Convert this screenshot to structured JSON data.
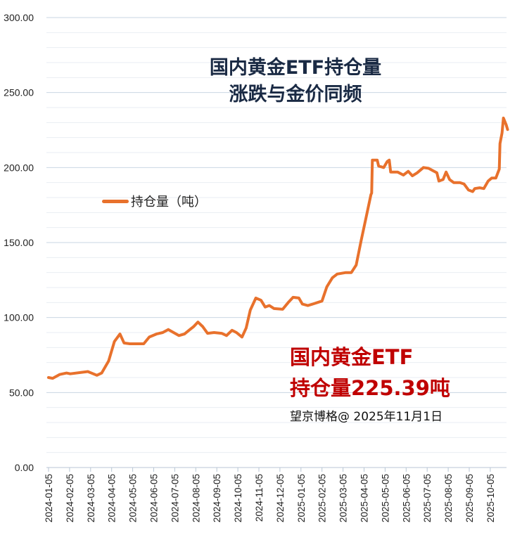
{
  "chart_data": {
    "type": "line",
    "title": "国内黄金ETF持仓量",
    "subtitle": "涨跌与金价同频",
    "xlabel": "",
    "ylabel": "",
    "ylim": [
      0,
      300
    ],
    "yticks": [
      "0.00",
      "50.00",
      "100.00",
      "150.00",
      "200.00",
      "250.00",
      "300.00"
    ],
    "xticks": [
      "2024-01-05",
      "2024-02-05",
      "2024-03-05",
      "2024-04-05",
      "2024-05-05",
      "2024-06-05",
      "2024-07-05",
      "2024-08-05",
      "2024-09-05",
      "2024-10-05",
      "2024-11-05",
      "2024-12-05",
      "2025-01-05",
      "2025-02-05",
      "2025-03-05",
      "2025-04-05",
      "2025-05-05",
      "2025-06-05",
      "2025-07-05",
      "2025-08-05",
      "2025-09-05",
      "2025-10-05"
    ],
    "grid": true,
    "legend_placement": "left",
    "series": [
      {
        "name": "持仓量（吨）",
        "color": "#e8712c",
        "points": [
          [
            "2024-01-05",
            60
          ],
          [
            "2024-01-11",
            59.5
          ],
          [
            "2024-01-21",
            62
          ],
          [
            "2024-01-31",
            63
          ],
          [
            "2024-02-06",
            62.5
          ],
          [
            "2024-03-01",
            64
          ],
          [
            "2024-03-14",
            61.5
          ],
          [
            "2024-03-21",
            63
          ],
          [
            "2024-03-31",
            71
          ],
          [
            "2024-04-09",
            84
          ],
          [
            "2024-04-17",
            89
          ],
          [
            "2024-04-23",
            83
          ],
          [
            "2024-05-01",
            82.5
          ],
          [
            "2024-05-21",
            82.5
          ],
          [
            "2024-05-29",
            87
          ],
          [
            "2024-06-09",
            89
          ],
          [
            "2024-06-18",
            90
          ],
          [
            "2024-06-26",
            92
          ],
          [
            "2024-07-11",
            88
          ],
          [
            "2024-07-19",
            89
          ],
          [
            "2024-07-27",
            92
          ],
          [
            "2024-08-02",
            94
          ],
          [
            "2024-08-08",
            97
          ],
          [
            "2024-08-15",
            94
          ],
          [
            "2024-08-22",
            89.5
          ],
          [
            "2024-09-01",
            90
          ],
          [
            "2024-09-12",
            89.5
          ],
          [
            "2024-09-19",
            88
          ],
          [
            "2024-09-27",
            91.5
          ],
          [
            "2024-10-03",
            90
          ],
          [
            "2024-10-11",
            87
          ],
          [
            "2024-10-17",
            93
          ],
          [
            "2024-10-23",
            105
          ],
          [
            "2024-10-31",
            113
          ],
          [
            "2024-11-08",
            111.5
          ],
          [
            "2024-11-14",
            107
          ],
          [
            "2024-11-20",
            108
          ],
          [
            "2024-11-27",
            106
          ],
          [
            "2024-12-09",
            105.5
          ],
          [
            "2024-12-17",
            110
          ],
          [
            "2024-12-24",
            113.5
          ],
          [
            "2025-01-02",
            113
          ],
          [
            "2025-01-07",
            109
          ],
          [
            "2025-01-15",
            108
          ],
          [
            "2025-01-22",
            109
          ],
          [
            "2025-02-05",
            111
          ],
          [
            "2025-02-12",
            120.5
          ],
          [
            "2025-02-20",
            126.5
          ],
          [
            "2025-02-27",
            129
          ],
          [
            "2025-03-09",
            130
          ],
          [
            "2025-03-17",
            130
          ],
          [
            "2025-03-24",
            135
          ],
          [
            "2025-03-31",
            151
          ],
          [
            "2025-04-09",
            169
          ],
          [
            "2025-04-15",
            182
          ],
          [
            "2025-04-16",
            183
          ],
          [
            "2025-04-17",
            205
          ],
          [
            "2025-04-24",
            205
          ],
          [
            "2025-04-26",
            201
          ],
          [
            "2025-05-03",
            200
          ],
          [
            "2025-05-08",
            204
          ],
          [
            "2025-05-11",
            205
          ],
          [
            "2025-05-13",
            197
          ],
          [
            "2025-05-23",
            197
          ],
          [
            "2025-06-01",
            195
          ],
          [
            "2025-06-08",
            197.5
          ],
          [
            "2025-06-14",
            194.5
          ],
          [
            "2025-06-21",
            196.5
          ],
          [
            "2025-06-30",
            200
          ],
          [
            "2025-07-07",
            199.5
          ],
          [
            "2025-07-13",
            198
          ],
          [
            "2025-07-19",
            196.5
          ],
          [
            "2025-07-22",
            191
          ],
          [
            "2025-07-28",
            192
          ],
          [
            "2025-08-02",
            197
          ],
          [
            "2025-08-07",
            192
          ],
          [
            "2025-08-13",
            190
          ],
          [
            "2025-08-22",
            190
          ],
          [
            "2025-08-28",
            189
          ],
          [
            "2025-09-04",
            185
          ],
          [
            "2025-09-10",
            184
          ],
          [
            "2025-09-13",
            186
          ],
          [
            "2025-09-20",
            186.5
          ],
          [
            "2025-09-26",
            186
          ],
          [
            "2025-10-02",
            191
          ],
          [
            "2025-10-07",
            193
          ],
          [
            "2025-10-13",
            193
          ],
          [
            "2025-10-18",
            199
          ],
          [
            "2025-10-19",
            216
          ],
          [
            "2025-10-22",
            223
          ],
          [
            "2025-10-24",
            233
          ],
          [
            "2025-10-28",
            228.5
          ],
          [
            "2025-10-30",
            225.39
          ]
        ]
      }
    ],
    "annotations": {
      "note_line1": "国内黄金ETF",
      "note_line2": "持仓量225.39吨",
      "credit": "望京博格@ 2025年11月1日"
    },
    "colors": {
      "line": "#e8712c",
      "title": "#1a2a44",
      "note": "#c00000",
      "grid_major": "#c9d6e3",
      "grid_minor": "#e9eef3"
    }
  }
}
